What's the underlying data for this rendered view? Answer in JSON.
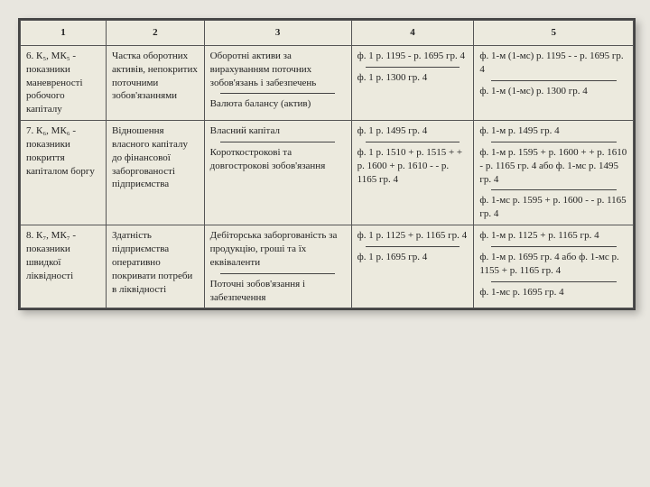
{
  "headers": {
    "c1": "1",
    "c2": "2",
    "c3": "3",
    "c4": "4",
    "c5": "5"
  },
  "rows": [
    {
      "c1": "6. К₅, МК₅ - показники маневреності робочого капіталу",
      "c2": "Частка оборотних активів, непокритих поточними зобов'язаннями",
      "c3a": "Оборотні активи за вирахуванням поточних зобов'язань і забезпечень",
      "c3b": "Валюта балансу (актив)",
      "c4a": "ф. 1 р. 1195 - р. 1695 гр. 4",
      "c4b": "ф. 1 р. 1300 гр. 4",
      "c5a": "ф. 1-м (1-мс) р. 1195 - - р. 1695 гр. 4",
      "c5b": "ф. 1-м (1-мс) р. 1300 гр. 4"
    },
    {
      "c1": "7. К₆, МК₆ - показники покриття капіталом боргу",
      "c2": "Відношення власного капіталу до фінансової заборгованості підприємства",
      "c3a": "Власний капітал",
      "c3b": "Короткострокові та довгострокові зобов'язання",
      "c4a": "ф. 1 р. 1495 гр. 4",
      "c4b": "ф. 1 р. 1510 + р. 1515 + + р. 1600 + р. 1610 - - р. 1165 гр. 4",
      "c5a": "ф. 1-м р. 1495 гр. 4",
      "c5b": "ф. 1-м р. 1595 + р. 1600 + + р. 1610 - р. 1165 гр. 4 або ф. 1-мс р. 1495 гр. 4",
      "c5c": "ф. 1-мс р. 1595 + р. 1600 - - р. 1165 гр. 4"
    },
    {
      "c1": "8. К₇, МК₇ - показники швидкої ліквідності",
      "c2": "Здатність підприємства оперативно покривати потреби в ліквідності",
      "c3a": "Дебіторська заборгованість за продукцію, гроші та їх еквіваленти",
      "c3b": "Поточні зобов'язання і забезпечення",
      "c4a": "ф. 1 р. 1125 + р. 1165 гр. 4",
      "c4b": "ф. 1 р. 1695 гр. 4",
      "c5a": "ф. 1-м р. 1125 + р. 1165 гр. 4",
      "c5b": "ф. 1-м р. 1695 гр. 4 або ф. 1-мс р. 1155 + р. 1165 гр. 4",
      "c5c": "ф. 1-мс р. 1695 гр. 4"
    }
  ]
}
